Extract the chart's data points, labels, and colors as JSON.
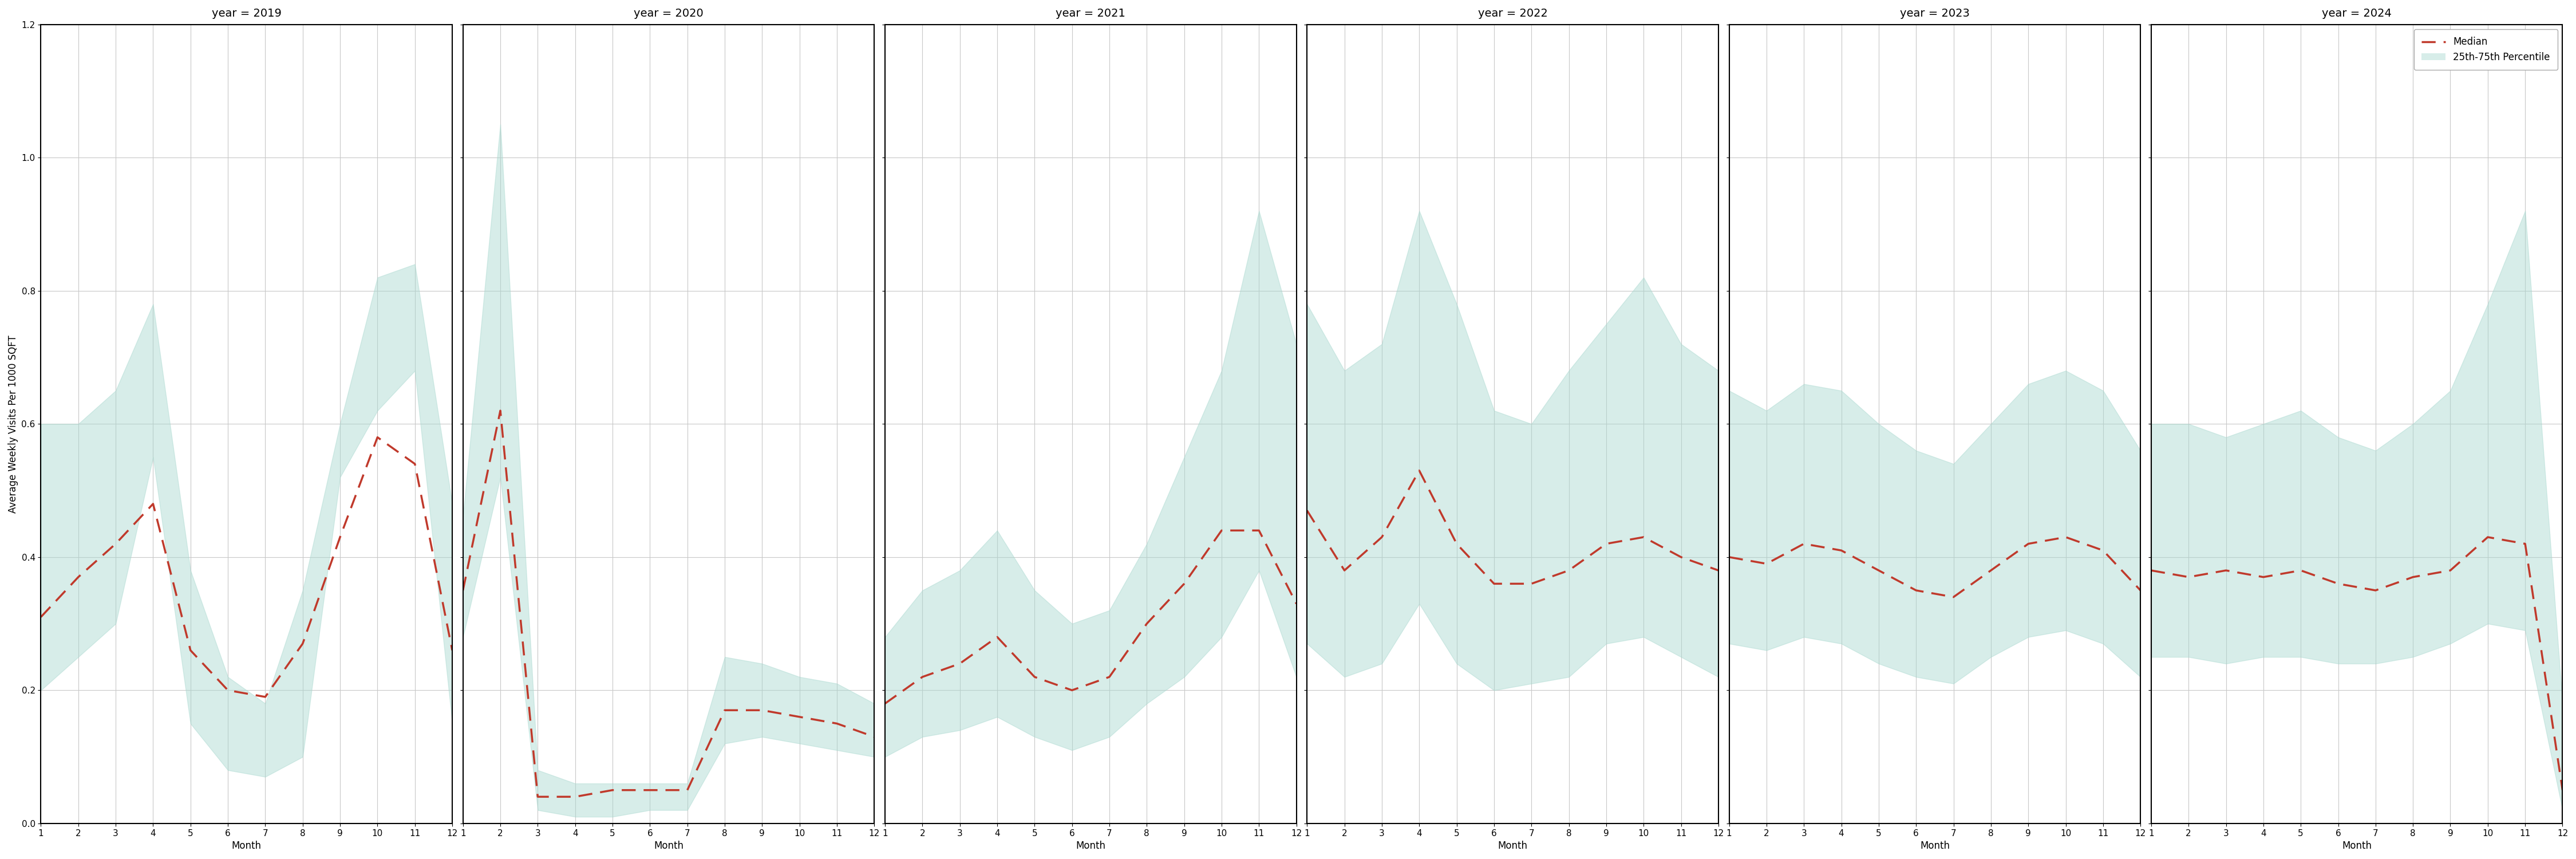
{
  "years": [
    2019,
    2020,
    2021,
    2022,
    2023,
    2024
  ],
  "months": [
    1,
    2,
    3,
    4,
    5,
    6,
    7,
    8,
    9,
    10,
    11,
    12
  ],
  "median": {
    "2019": [
      0.31,
      0.37,
      0.42,
      0.48,
      0.26,
      0.2,
      0.19,
      0.27,
      0.43,
      0.58,
      0.54,
      0.26
    ],
    "2020": [
      0.35,
      0.62,
      0.04,
      0.04,
      0.05,
      0.05,
      0.05,
      0.17,
      0.17,
      0.16,
      0.15,
      0.13
    ],
    "2021": [
      0.18,
      0.22,
      0.24,
      0.28,
      0.22,
      0.2,
      0.22,
      0.3,
      0.36,
      0.44,
      0.44,
      0.33
    ],
    "2022": [
      0.47,
      0.38,
      0.43,
      0.53,
      0.42,
      0.36,
      0.36,
      0.38,
      0.42,
      0.43,
      0.4,
      0.38
    ],
    "2023": [
      0.4,
      0.39,
      0.42,
      0.41,
      0.38,
      0.35,
      0.34,
      0.38,
      0.42,
      0.43,
      0.41,
      0.35
    ],
    "2024": [
      0.38,
      0.37,
      0.38,
      0.37,
      0.38,
      0.36,
      0.35,
      0.37,
      0.38,
      0.43,
      0.42,
      0.05
    ]
  },
  "q25": {
    "2019": [
      0.2,
      0.25,
      0.3,
      0.55,
      0.15,
      0.08,
      0.07,
      0.1,
      0.52,
      0.62,
      0.68,
      0.15
    ],
    "2020": [
      0.28,
      0.52,
      0.02,
      0.01,
      0.01,
      0.02,
      0.02,
      0.12,
      0.13,
      0.12,
      0.11,
      0.1
    ],
    "2021": [
      0.1,
      0.13,
      0.14,
      0.16,
      0.13,
      0.11,
      0.13,
      0.18,
      0.22,
      0.28,
      0.38,
      0.22
    ],
    "2022": [
      0.27,
      0.22,
      0.24,
      0.33,
      0.24,
      0.2,
      0.21,
      0.22,
      0.27,
      0.28,
      0.25,
      0.22
    ],
    "2023": [
      0.27,
      0.26,
      0.28,
      0.27,
      0.24,
      0.22,
      0.21,
      0.25,
      0.28,
      0.29,
      0.27,
      0.22
    ],
    "2024": [
      0.25,
      0.25,
      0.24,
      0.25,
      0.25,
      0.24,
      0.24,
      0.25,
      0.27,
      0.3,
      0.29,
      0.02
    ]
  },
  "q75": {
    "2019": [
      0.6,
      0.6,
      0.65,
      0.78,
      0.38,
      0.22,
      0.18,
      0.35,
      0.6,
      0.82,
      0.84,
      0.48
    ],
    "2020": [
      0.46,
      1.05,
      0.08,
      0.06,
      0.06,
      0.06,
      0.06,
      0.25,
      0.24,
      0.22,
      0.21,
      0.18
    ],
    "2021": [
      0.28,
      0.35,
      0.38,
      0.44,
      0.35,
      0.3,
      0.32,
      0.42,
      0.55,
      0.68,
      0.92,
      0.72
    ],
    "2022": [
      0.78,
      0.68,
      0.72,
      0.92,
      0.78,
      0.62,
      0.6,
      0.68,
      0.75,
      0.82,
      0.72,
      0.68
    ],
    "2023": [
      0.65,
      0.62,
      0.66,
      0.65,
      0.6,
      0.56,
      0.54,
      0.6,
      0.66,
      0.68,
      0.65,
      0.56
    ],
    "2024": [
      0.6,
      0.6,
      0.58,
      0.6,
      0.62,
      0.58,
      0.56,
      0.6,
      0.65,
      0.78,
      0.92,
      0.18
    ]
  },
  "fill_color": "#a8d8cf",
  "fill_alpha": 0.45,
  "line_color": "#c0392b",
  "grid_color": "#c8c8c8",
  "ylabel": "Average Weekly Visits Per 1000 SQFT",
  "xlabel": "Month",
  "ylim": [
    0.0,
    1.2
  ],
  "yticks": [
    0.0,
    0.2,
    0.4,
    0.6,
    0.8,
    1.0,
    1.2
  ],
  "xticks": [
    1,
    2,
    3,
    4,
    5,
    6,
    7,
    8,
    9,
    10,
    11,
    12
  ],
  "title_fontsize": 14,
  "label_fontsize": 12,
  "tick_fontsize": 11,
  "legend_fontsize": 12
}
